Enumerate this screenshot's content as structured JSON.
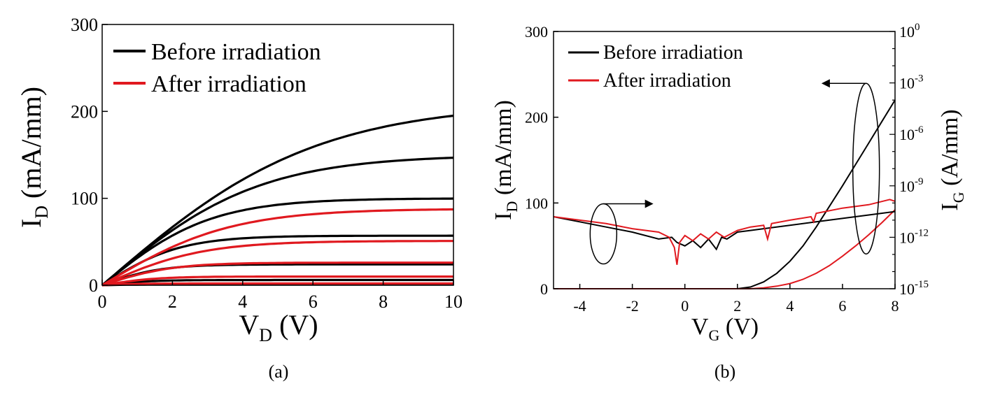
{
  "colors": {
    "before": "#000000",
    "after": "#e0191f"
  },
  "panels": {
    "a": {
      "caption": "(a)"
    },
    "b": {
      "caption": "(b)"
    }
  },
  "chart_data": [
    {
      "type": "line",
      "panel": "a",
      "xlabel": {
        "main": "V",
        "sub": "D",
        "unit": " (V)"
      },
      "ylabel": {
        "main": "I",
        "sub": "D",
        "unit": " (mA/mm)"
      },
      "xlim": [
        0,
        10
      ],
      "ylim": [
        0,
        300
      ],
      "xticks": [
        0,
        2,
        4,
        6,
        8,
        10
      ],
      "yticks": [
        0,
        100,
        200,
        300
      ],
      "legend": {
        "position": "top-left",
        "entries": [
          "Before irradiation",
          "After irradiation"
        ]
      },
      "series": [
        {
          "name": "Before irradiation",
          "color": "before",
          "model": "saturation",
          "curves": [
            {
              "isat": 210,
              "k": 0.33
            },
            {
              "isat": 150,
              "k": 0.45
            },
            {
              "isat": 100,
              "k": 0.65
            },
            {
              "isat": 57,
              "k": 0.9
            },
            {
              "isat": 24,
              "k": 1.2
            },
            {
              "isat": 6,
              "k": 1.5
            },
            {
              "isat": 1,
              "k": 2
            }
          ]
        },
        {
          "name": "After irradiation",
          "color": "after",
          "model": "saturation",
          "curves": [
            {
              "isat": 88,
              "k": 0.55
            },
            {
              "isat": 51,
              "k": 0.7
            },
            {
              "isat": 26,
              "k": 1.0
            },
            {
              "isat": 10,
              "k": 1.3
            },
            {
              "isat": 2,
              "k": 2
            }
          ]
        }
      ]
    },
    {
      "type": "line",
      "panel": "b",
      "xlabel": {
        "main": "V",
        "sub": "G",
        "unit": " (V)"
      },
      "ylabel": {
        "main": "I",
        "sub": "D",
        "unit": " (mA/mm)"
      },
      "y2label": {
        "main": "I",
        "sub": "G",
        "unit": " (A/mm)"
      },
      "xlim": [
        -5,
        8
      ],
      "ylim": [
        0,
        300
      ],
      "y2lim_exponent": [
        -15,
        0
      ],
      "y2scale": "log",
      "xticks": [
        -4,
        -2,
        0,
        2,
        4,
        6,
        8
      ],
      "yticks": [
        0,
        100,
        200,
        300
      ],
      "y2ticks": [
        {
          "base": "10",
          "exp": "0",
          "value": 0
        },
        {
          "base": "10",
          "exp": "-3",
          "value": -3
        },
        {
          "base": "10",
          "exp": "-6",
          "value": -6
        },
        {
          "base": "10",
          "exp": "-9",
          "value": -9
        },
        {
          "base": "10",
          "exp": "-12",
          "value": -12
        },
        {
          "base": "10",
          "exp": "-15",
          "value": -15
        }
      ],
      "legend": {
        "position": "top-left",
        "entries": [
          "Before irradiation",
          "After irradiation"
        ]
      },
      "series": [
        {
          "name": "Before irradiation",
          "color": "before",
          "quantity": "ID",
          "axis": "left",
          "x": [
            -5,
            1.5,
            2.0,
            2.5,
            3.0,
            3.5,
            4.0,
            4.5,
            5.0,
            5.5,
            6.0,
            6.5,
            7.0,
            7.5,
            8.0
          ],
          "y": [
            0,
            0,
            0,
            2,
            8,
            18,
            32,
            50,
            72,
            96,
            120,
            145,
            170,
            195,
            220
          ]
        },
        {
          "name": "After irradiation",
          "color": "after",
          "quantity": "ID",
          "axis": "left",
          "x": [
            -5,
            2.5,
            3.0,
            3.5,
            4.0,
            4.5,
            5.0,
            5.5,
            6.0,
            6.5,
            7.0,
            7.5,
            8.0
          ],
          "y": [
            0,
            0,
            1,
            3,
            6,
            11,
            18,
            27,
            38,
            50,
            63,
            77,
            92
          ]
        },
        {
          "name": "Before irradiation",
          "color": "before",
          "quantity": "IG",
          "axis": "right",
          "x": [
            -5,
            -4,
            -3,
            -2,
            -1,
            -0.5,
            -0.3,
            0,
            0.3,
            0.6,
            0.9,
            1.2,
            1.4,
            1.6,
            2,
            2.5,
            3,
            4,
            5,
            6,
            7,
            8
          ],
          "y": [
            -10.8,
            -11.1,
            -11.4,
            -11.7,
            -12.1,
            -12.0,
            -12.3,
            -12.5,
            -12.2,
            -12.6,
            -12.1,
            -12.7,
            -12.0,
            -12.1,
            -11.7,
            -11.6,
            -11.5,
            -11.3,
            -11.1,
            -10.9,
            -10.7,
            -10.5
          ]
        },
        {
          "name": "After irradiation",
          "color": "after",
          "quantity": "IG",
          "axis": "right",
          "x": [
            -5,
            -4,
            -3,
            -2,
            -1,
            -0.6,
            -0.4,
            -0.3,
            -0.2,
            0,
            0.3,
            0.6,
            0.9,
            1.2,
            1.5,
            2,
            2.5,
            3.0,
            3.15,
            3.3,
            4,
            4.8,
            4.9,
            5,
            6,
            7,
            7.8,
            8
          ],
          "y": [
            -10.8,
            -11.0,
            -11.2,
            -11.5,
            -11.7,
            -12.0,
            -12.6,
            -13.6,
            -12.3,
            -11.9,
            -12.2,
            -11.8,
            -12.1,
            -11.7,
            -12.0,
            -11.6,
            -11.4,
            -11.3,
            -12.1,
            -11.2,
            -11.0,
            -10.8,
            -11.1,
            -10.6,
            -10.3,
            -10.1,
            -9.8,
            -9.9
          ]
        }
      ],
      "annotations": [
        {
          "type": "ellipse-arrow",
          "points_to": "right-axis",
          "cx": -3.1,
          "cy_exponent": -11.8,
          "arrow_to_x": -1.2
        },
        {
          "type": "ellipse-arrow",
          "points_to": "left-axis",
          "cx": 6.9,
          "cy": 140,
          "arrow_to_x": 5.2
        }
      ]
    }
  ]
}
